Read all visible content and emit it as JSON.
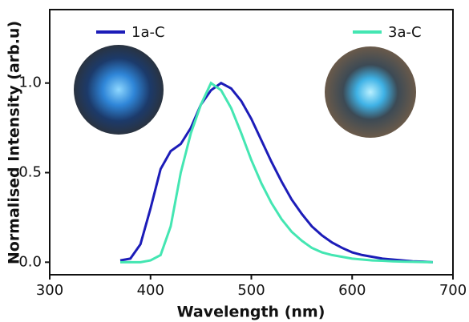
{
  "chart_data": {
    "type": "line",
    "x_label": "Wavelength (nm)",
    "y_label": "Normalised Intensity (arb.u)",
    "x": [
      370,
      380,
      390,
      400,
      410,
      420,
      430,
      440,
      450,
      460,
      470,
      480,
      490,
      500,
      510,
      520,
      530,
      540,
      550,
      560,
      570,
      580,
      590,
      600,
      610,
      620,
      630,
      640,
      650,
      660,
      670,
      680
    ],
    "series": [
      {
        "name": "1a-C",
        "color": "#1c1cb8",
        "values": [
          0.01,
          0.02,
          0.1,
          0.3,
          0.52,
          0.62,
          0.66,
          0.75,
          0.88,
          0.96,
          1.0,
          0.97,
          0.9,
          0.8,
          0.68,
          0.56,
          0.45,
          0.35,
          0.27,
          0.2,
          0.15,
          0.11,
          0.08,
          0.055,
          0.04,
          0.03,
          0.02,
          0.015,
          0.01,
          0.005,
          0.003,
          0.0
        ]
      },
      {
        "name": "3a-C",
        "color": "#44e6b2",
        "values": [
          0,
          0,
          0,
          0.01,
          0.04,
          0.2,
          0.5,
          0.72,
          0.88,
          1.0,
          0.96,
          0.86,
          0.72,
          0.57,
          0.44,
          0.33,
          0.24,
          0.17,
          0.12,
          0.08,
          0.055,
          0.04,
          0.03,
          0.02,
          0.015,
          0.01,
          0.008,
          0.005,
          0.003,
          0.002,
          0.001,
          0
        ]
      }
    ],
    "xlim": [
      300,
      700
    ],
    "xticks": [
      300,
      400,
      500,
      600,
      700
    ],
    "ylim": [
      -0.07,
      1.41
    ],
    "yticks": [
      {
        "value": 0,
        "label": "0.0"
      },
      {
        "value": 0.5,
        "label": "0.5"
      },
      {
        "value": 1,
        "label": "1.0"
      }
    ]
  }
}
